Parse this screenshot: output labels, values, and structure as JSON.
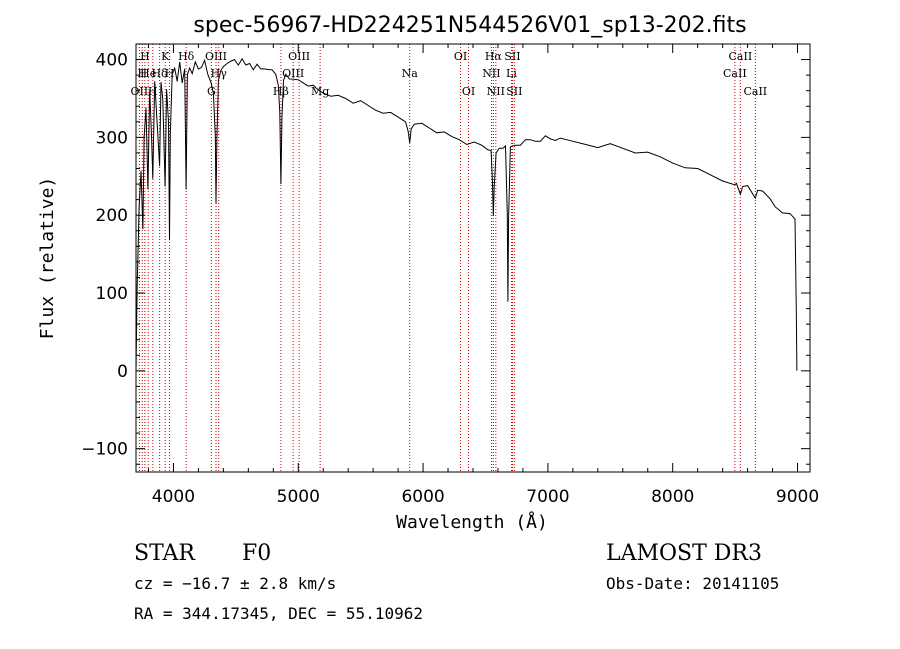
{
  "chart_data": {
    "type": "line",
    "title": "spec-56967-HD224251N544526V01_sp13-202.fits",
    "xlabel": "Wavelength (Å)",
    "ylabel": "Flux (relative)",
    "xlim": [
      3700,
      9100
    ],
    "ylim": [
      -130,
      420
    ],
    "xticks": [
      4000,
      5000,
      6000,
      7000,
      8000,
      9000
    ],
    "yticks": [
      -100,
      0,
      100,
      200,
      300,
      400
    ],
    "series": [
      {
        "name": "spectrum",
        "points": [
          [
            3700,
            0
          ],
          [
            3710,
            110
          ],
          [
            3725,
            210
          ],
          [
            3740,
            260
          ],
          [
            3755,
            180
          ],
          [
            3765,
            300
          ],
          [
            3780,
            340
          ],
          [
            3795,
            230
          ],
          [
            3810,
            360
          ],
          [
            3825,
            300
          ],
          [
            3835,
            250
          ],
          [
            3850,
            370
          ],
          [
            3865,
            330
          ],
          [
            3880,
            290
          ],
          [
            3889,
            260
          ],
          [
            3900,
            370
          ],
          [
            3915,
            350
          ],
          [
            3933,
            240
          ],
          [
            3945,
            360
          ],
          [
            3960,
            320
          ],
          [
            3968,
            170
          ],
          [
            3975,
            300
          ],
          [
            3990,
            380
          ],
          [
            4010,
            390
          ],
          [
            4030,
            375
          ],
          [
            4050,
            395
          ],
          [
            4070,
            370
          ],
          [
            4090,
            390
          ],
          [
            4101,
            230
          ],
          [
            4112,
            380
          ],
          [
            4130,
            390
          ],
          [
            4150,
            385
          ],
          [
            4175,
            395
          ],
          [
            4200,
            388
          ],
          [
            4225,
            392
          ],
          [
            4250,
            396
          ],
          [
            4275,
            380
          ],
          [
            4300,
            372
          ],
          [
            4320,
            360
          ],
          [
            4335,
            300
          ],
          [
            4341,
            215
          ],
          [
            4348,
            300
          ],
          [
            4360,
            370
          ],
          [
            4380,
            385
          ],
          [
            4400,
            392
          ],
          [
            4430,
            398
          ],
          [
            4460,
            396
          ],
          [
            4490,
            400
          ],
          [
            4520,
            395
          ],
          [
            4550,
            398
          ],
          [
            4580,
            392
          ],
          [
            4610,
            396
          ],
          [
            4640,
            390
          ],
          [
            4670,
            392
          ],
          [
            4700,
            388
          ],
          [
            4730,
            390
          ],
          [
            4760,
            384
          ],
          [
            4790,
            386
          ],
          [
            4820,
            382
          ],
          [
            4840,
            370
          ],
          [
            4852,
            330
          ],
          [
            4861,
            240
          ],
          [
            4870,
            330
          ],
          [
            4882,
            370
          ],
          [
            4900,
            380
          ],
          [
            4930,
            376
          ],
          [
            4960,
            378
          ],
          [
            5000,
            372
          ],
          [
            5040,
            370
          ],
          [
            5080,
            368
          ],
          [
            5120,
            364
          ],
          [
            5160,
            360
          ],
          [
            5200,
            358
          ],
          [
            5260,
            356
          ],
          [
            5320,
            352
          ],
          [
            5380,
            350
          ],
          [
            5440,
            346
          ],
          [
            5500,
            344
          ],
          [
            5560,
            340
          ],
          [
            5620,
            336
          ],
          [
            5680,
            334
          ],
          [
            5740,
            330
          ],
          [
            5800,
            326
          ],
          [
            5860,
            322
          ],
          [
            5880,
            305
          ],
          [
            5893,
            292
          ],
          [
            5905,
            312
          ],
          [
            5930,
            320
          ],
          [
            5990,
            316
          ],
          [
            6050,
            312
          ],
          [
            6110,
            308
          ],
          [
            6170,
            304
          ],
          [
            6230,
            300
          ],
          [
            6290,
            298
          ],
          [
            6350,
            294
          ],
          [
            6410,
            292
          ],
          [
            6470,
            290
          ],
          [
            6520,
            286
          ],
          [
            6545,
            280
          ],
          [
            6556,
            240
          ],
          [
            6563,
            200
          ],
          [
            6570,
            240
          ],
          [
            6585,
            278
          ],
          [
            6610,
            286
          ],
          [
            6640,
            288
          ],
          [
            6660,
            286
          ],
          [
            6675,
            200
          ],
          [
            6680,
            90
          ],
          [
            6685,
            200
          ],
          [
            6700,
            286
          ],
          [
            6740,
            290
          ],
          [
            6780,
            292
          ],
          [
            6820,
            294
          ],
          [
            6860,
            296
          ],
          [
            6900,
            296
          ],
          [
            6940,
            298
          ],
          [
            6980,
            300
          ],
          [
            7020,
            298
          ],
          [
            7060,
            298
          ],
          [
            7100,
            296
          ],
          [
            7200,
            294
          ],
          [
            7300,
            292
          ],
          [
            7400,
            290
          ],
          [
            7500,
            290
          ],
          [
            7600,
            286
          ],
          [
            7700,
            282
          ],
          [
            7800,
            278
          ],
          [
            7900,
            274
          ],
          [
            8000,
            268
          ],
          [
            8100,
            264
          ],
          [
            8200,
            258
          ],
          [
            8300,
            252
          ],
          [
            8400,
            246
          ],
          [
            8498,
            236
          ],
          [
            8510,
            240
          ],
          [
            8542,
            228
          ],
          [
            8560,
            240
          ],
          [
            8600,
            236
          ],
          [
            8662,
            222
          ],
          [
            8680,
            234
          ],
          [
            8720,
            228
          ],
          [
            8780,
            220
          ],
          [
            8820,
            212
          ],
          [
            8880,
            206
          ],
          [
            8940,
            200
          ],
          [
            8980,
            195
          ],
          [
            8990,
            80
          ],
          [
            8995,
            0
          ]
        ]
      }
    ],
    "lines": [
      {
        "w": 3727,
        "label": "OII",
        "row": 2
      },
      {
        "w": 3750,
        "label": "H",
        "row": 1
      },
      {
        "w": 3771,
        "label": "H",
        "row": 0
      },
      {
        "w": 3798,
        "label": "He",
        "row": 1
      },
      {
        "w": 3835,
        "label": "H",
        "row": 2
      },
      {
        "w": 3889,
        "label": "Hδ",
        "row": 1
      },
      {
        "w": 3934,
        "label": "K",
        "row": 0
      },
      {
        "w": 3969,
        "label": "H",
        "row": 1
      },
      {
        "w": 4102,
        "label": "Hδ",
        "row": 0
      },
      {
        "w": 4304,
        "label": "G",
        "row": 2
      },
      {
        "w": 4341,
        "label": "OIII",
        "row": 0
      },
      {
        "w": 4363,
        "label": "Hγ",
        "row": 1
      },
      {
        "w": 4861,
        "label": "Hβ",
        "row": 2
      },
      {
        "w": 4959,
        "label": "OIII",
        "row": 1
      },
      {
        "w": 5007,
        "label": "OIII",
        "row": 0
      },
      {
        "w": 5175,
        "label": "Mg",
        "row": 2
      },
      {
        "w": 5893,
        "label": "Na",
        "row": 1
      },
      {
        "w": 6300,
        "label": "OI",
        "row": 0
      },
      {
        "w": 6364,
        "label": "OI",
        "row": 2
      },
      {
        "w": 6548,
        "label": "NII",
        "row": 1
      },
      {
        "w": 6563,
        "label": "Hα",
        "row": 0
      },
      {
        "w": 6583,
        "label": "NII",
        "row": 2
      },
      {
        "w": 6708,
        "label": "Li",
        "row": 1
      },
      {
        "w": 6716,
        "label": "SII",
        "row": 0
      },
      {
        "w": 6731,
        "label": "SII",
        "row": 2
      },
      {
        "w": 8498,
        "label": "CaII",
        "row": 1
      },
      {
        "w": 8542,
        "label": "CaII",
        "row": 0
      },
      {
        "w": 8662,
        "label": "CaII",
        "row": 2
      }
    ]
  },
  "info": {
    "class": "STAR",
    "subclass": "F0",
    "cz": "cz = −16.7 ± 2.8 km/s",
    "coords": "RA = 344.17345, DEC =  55.10962",
    "survey": "LAMOST DR3",
    "obs_date": "Obs-Date: 20141105"
  },
  "colors": {
    "line_marker": "#cc0000",
    "spectrum": "#000000"
  }
}
